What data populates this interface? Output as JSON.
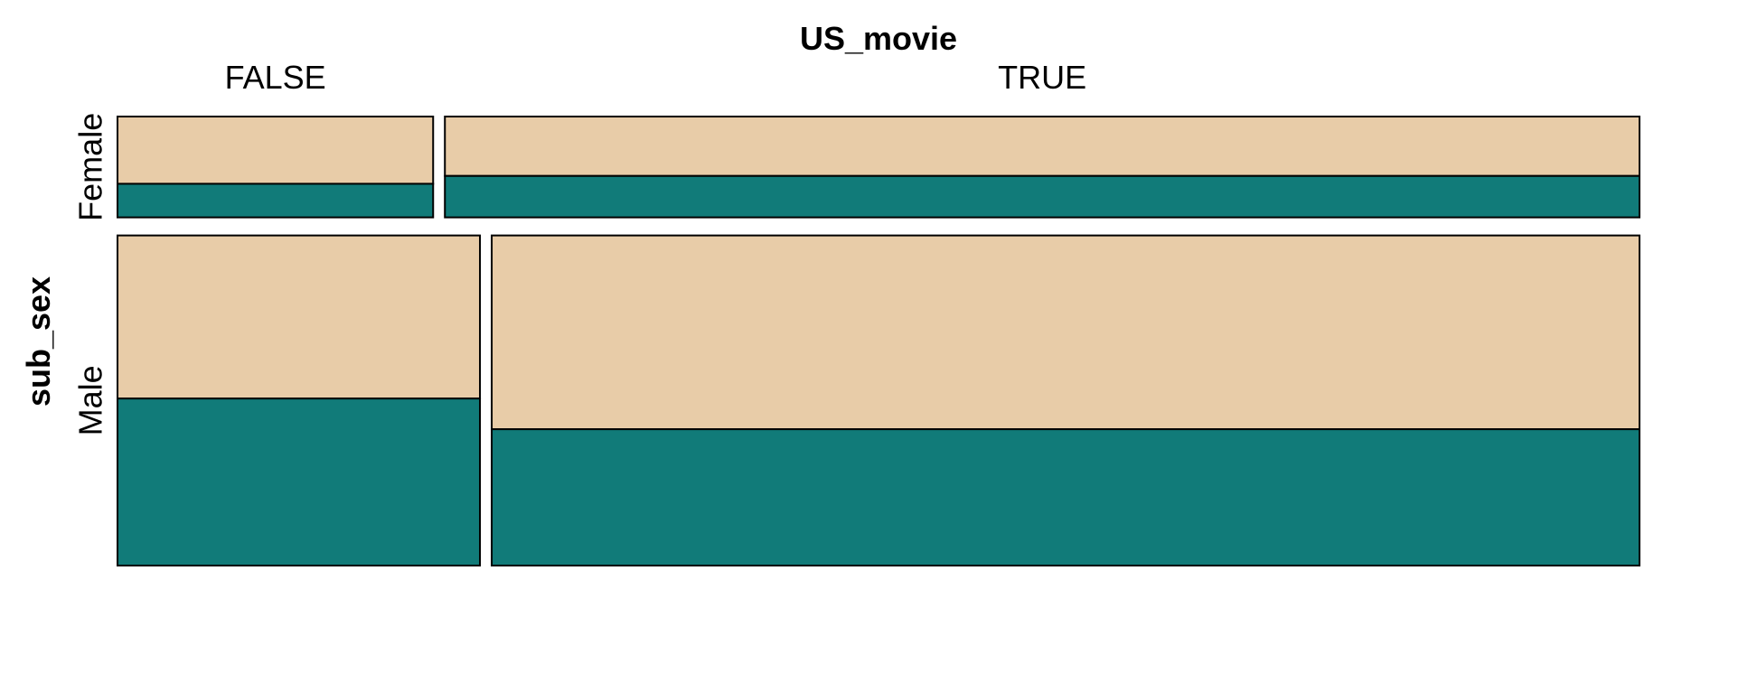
{
  "chart_data": {
    "type": "mosaic",
    "title": "",
    "column_variable": "US_movie",
    "row_variable": "sub_sex",
    "columns": [
      "FALSE",
      "TRUE"
    ],
    "rows": [
      "Female",
      "Male"
    ],
    "row_proportions": [
      0.234,
      0.766
    ],
    "column_proportions_within_row": {
      "Female": [
        0.209,
        0.791
      ],
      "Male": [
        0.24,
        0.76
      ]
    },
    "lower_segment_share": {
      "Female": [
        0.333,
        0.411
      ],
      "Male": [
        0.506,
        0.413
      ]
    },
    "colors": {
      "upper": "#E8CCA8",
      "lower": "#117B79",
      "border": "#000000",
      "background": "#FFFFFF"
    }
  }
}
